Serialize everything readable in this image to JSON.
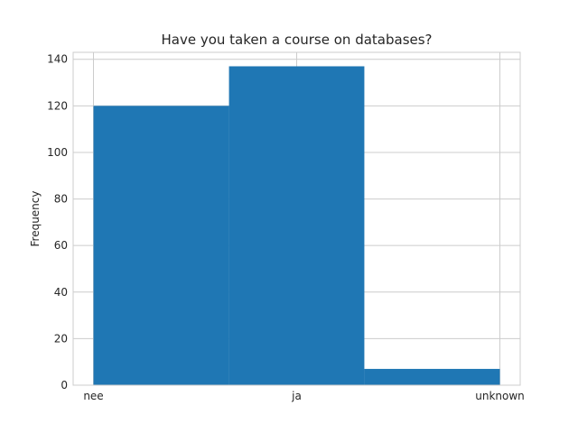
{
  "chart_data": {
    "type": "bar",
    "title": "Have you taken a course on databases?",
    "xlabel": "",
    "ylabel": "Frequency",
    "categories": [
      "nee",
      "ja",
      "unknown"
    ],
    "bins": [
      {
        "from": 0.0,
        "to": 0.667,
        "value": 120
      },
      {
        "from": 0.667,
        "to": 1.333,
        "value": 137
      },
      {
        "from": 1.333,
        "to": 2.0,
        "value": 7
      }
    ],
    "x_ticks": [
      {
        "pos": 0,
        "label": "nee"
      },
      {
        "pos": 1,
        "label": "ja"
      },
      {
        "pos": 2,
        "label": "unknown"
      }
    ],
    "ylim": [
      0,
      143
    ],
    "xlim": [
      -0.1,
      2.1
    ],
    "y_ticks": [
      0,
      20,
      40,
      60,
      80,
      100,
      120,
      140
    ],
    "grid": true,
    "legend": false,
    "colors": {
      "bar": "#1f77b4",
      "grid": "#cccccc",
      "text": "#262626"
    }
  }
}
